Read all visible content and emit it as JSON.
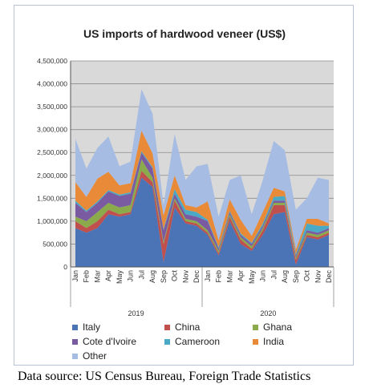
{
  "chart_data": {
    "type": "area",
    "stacked": true,
    "title": "US imports of hardwood veneer (US$)",
    "ylim": [
      0,
      4500000
    ],
    "yticks": [
      0,
      500000,
      1000000,
      1500000,
      2000000,
      2500000,
      3000000,
      3500000,
      4000000,
      4500000
    ],
    "ytick_labels": [
      "0",
      "500,000",
      "1,000,000",
      "1,500,000",
      "2,000,000",
      "2,500,000",
      "3,000,000",
      "3,500,000",
      "4,000,000",
      "4,500,000"
    ],
    "x": [
      "Jan",
      "Feb",
      "Mar",
      "Apr",
      "May",
      "Jun",
      "Jul",
      "Aug",
      "Sep",
      "Oct",
      "Nov",
      "Dec",
      "Jan",
      "Feb",
      "Mar",
      "Apr",
      "May",
      "Jun",
      "Jul",
      "Aug",
      "Sep",
      "Oct",
      "Nov",
      "Dec"
    ],
    "xtick_labels": [
      "Jan",
      "Feb",
      "Mar",
      "Apr",
      "May",
      "Jun",
      "Jul",
      "Aug",
      "Sep",
      "Oct",
      "Nov",
      "Dec",
      "Jan",
      "Feb",
      "Mar",
      "Apr",
      "May",
      "Jun",
      "Jul",
      "Aug",
      "Sep",
      "Oct",
      "Nov",
      "Dec"
    ],
    "groups": [
      {
        "label": "2019",
        "span": 12
      },
      {
        "label": "2020",
        "span": 12
      }
    ],
    "grid": true,
    "legend_position": "bottom",
    "series": [
      {
        "name": "Italy",
        "color": "#4a74b6",
        "values": [
          850000,
          750000,
          850000,
          1150000,
          1100000,
          1150000,
          1950000,
          1750000,
          100000,
          1300000,
          950000,
          900000,
          700000,
          250000,
          1000000,
          500000,
          350000,
          700000,
          1150000,
          1200000,
          50000,
          650000,
          600000,
          700000
        ]
      },
      {
        "name": "China",
        "color": "#c0504d",
        "values": [
          150000,
          100000,
          150000,
          100000,
          50000,
          50000,
          150000,
          100000,
          400000,
          150000,
          50000,
          50000,
          50000,
          50000,
          100000,
          100000,
          50000,
          100000,
          200000,
          150000,
          100000,
          50000,
          50000,
          50000
        ]
      },
      {
        "name": "Ghana",
        "color": "#8aaa4c",
        "values": [
          100000,
          150000,
          200000,
          150000,
          150000,
          150000,
          250000,
          100000,
          50000,
          50000,
          50000,
          50000,
          50000,
          50000,
          50000,
          50000,
          50000,
          50000,
          50000,
          50000,
          50000,
          50000,
          50000,
          50000
        ]
      },
      {
        "name": "Cote d'Ivoire",
        "color": "#7a5aa1",
        "values": [
          300000,
          200000,
          200000,
          250000,
          250000,
          250000,
          150000,
          200000,
          250000,
          100000,
          100000,
          100000,
          200000,
          50000,
          50000,
          50000,
          50000,
          50000,
          50000,
          50000,
          50000,
          50000,
          50000,
          50000
        ]
      },
      {
        "name": "Cameroon",
        "color": "#4aa9c4",
        "values": [
          50000,
          30000,
          30000,
          30000,
          30000,
          30000,
          30000,
          30000,
          30000,
          100000,
          100000,
          100000,
          30000,
          30000,
          30000,
          30000,
          30000,
          50000,
          80000,
          100000,
          30000,
          150000,
          150000,
          50000
        ]
      },
      {
        "name": "India",
        "color": "#e88a38",
        "values": [
          400000,
          300000,
          500000,
          400000,
          200000,
          200000,
          450000,
          300000,
          300000,
          300000,
          100000,
          100000,
          400000,
          150000,
          250000,
          300000,
          150000,
          250000,
          200000,
          100000,
          100000,
          100000,
          150000,
          50000
        ]
      },
      {
        "name": "Other",
        "color": "#a7bce2",
        "values": [
          950000,
          620000,
          670000,
          770000,
          420000,
          470000,
          900000,
          870000,
          220000,
          900000,
          550000,
          900000,
          820000,
          520000,
          420000,
          970000,
          470000,
          700000,
          1020000,
          900000,
          870000,
          450000,
          900000,
          950000
        ]
      }
    ]
  },
  "source_text": "Data source: US Census Bureau, Foreign Trade Statistics"
}
